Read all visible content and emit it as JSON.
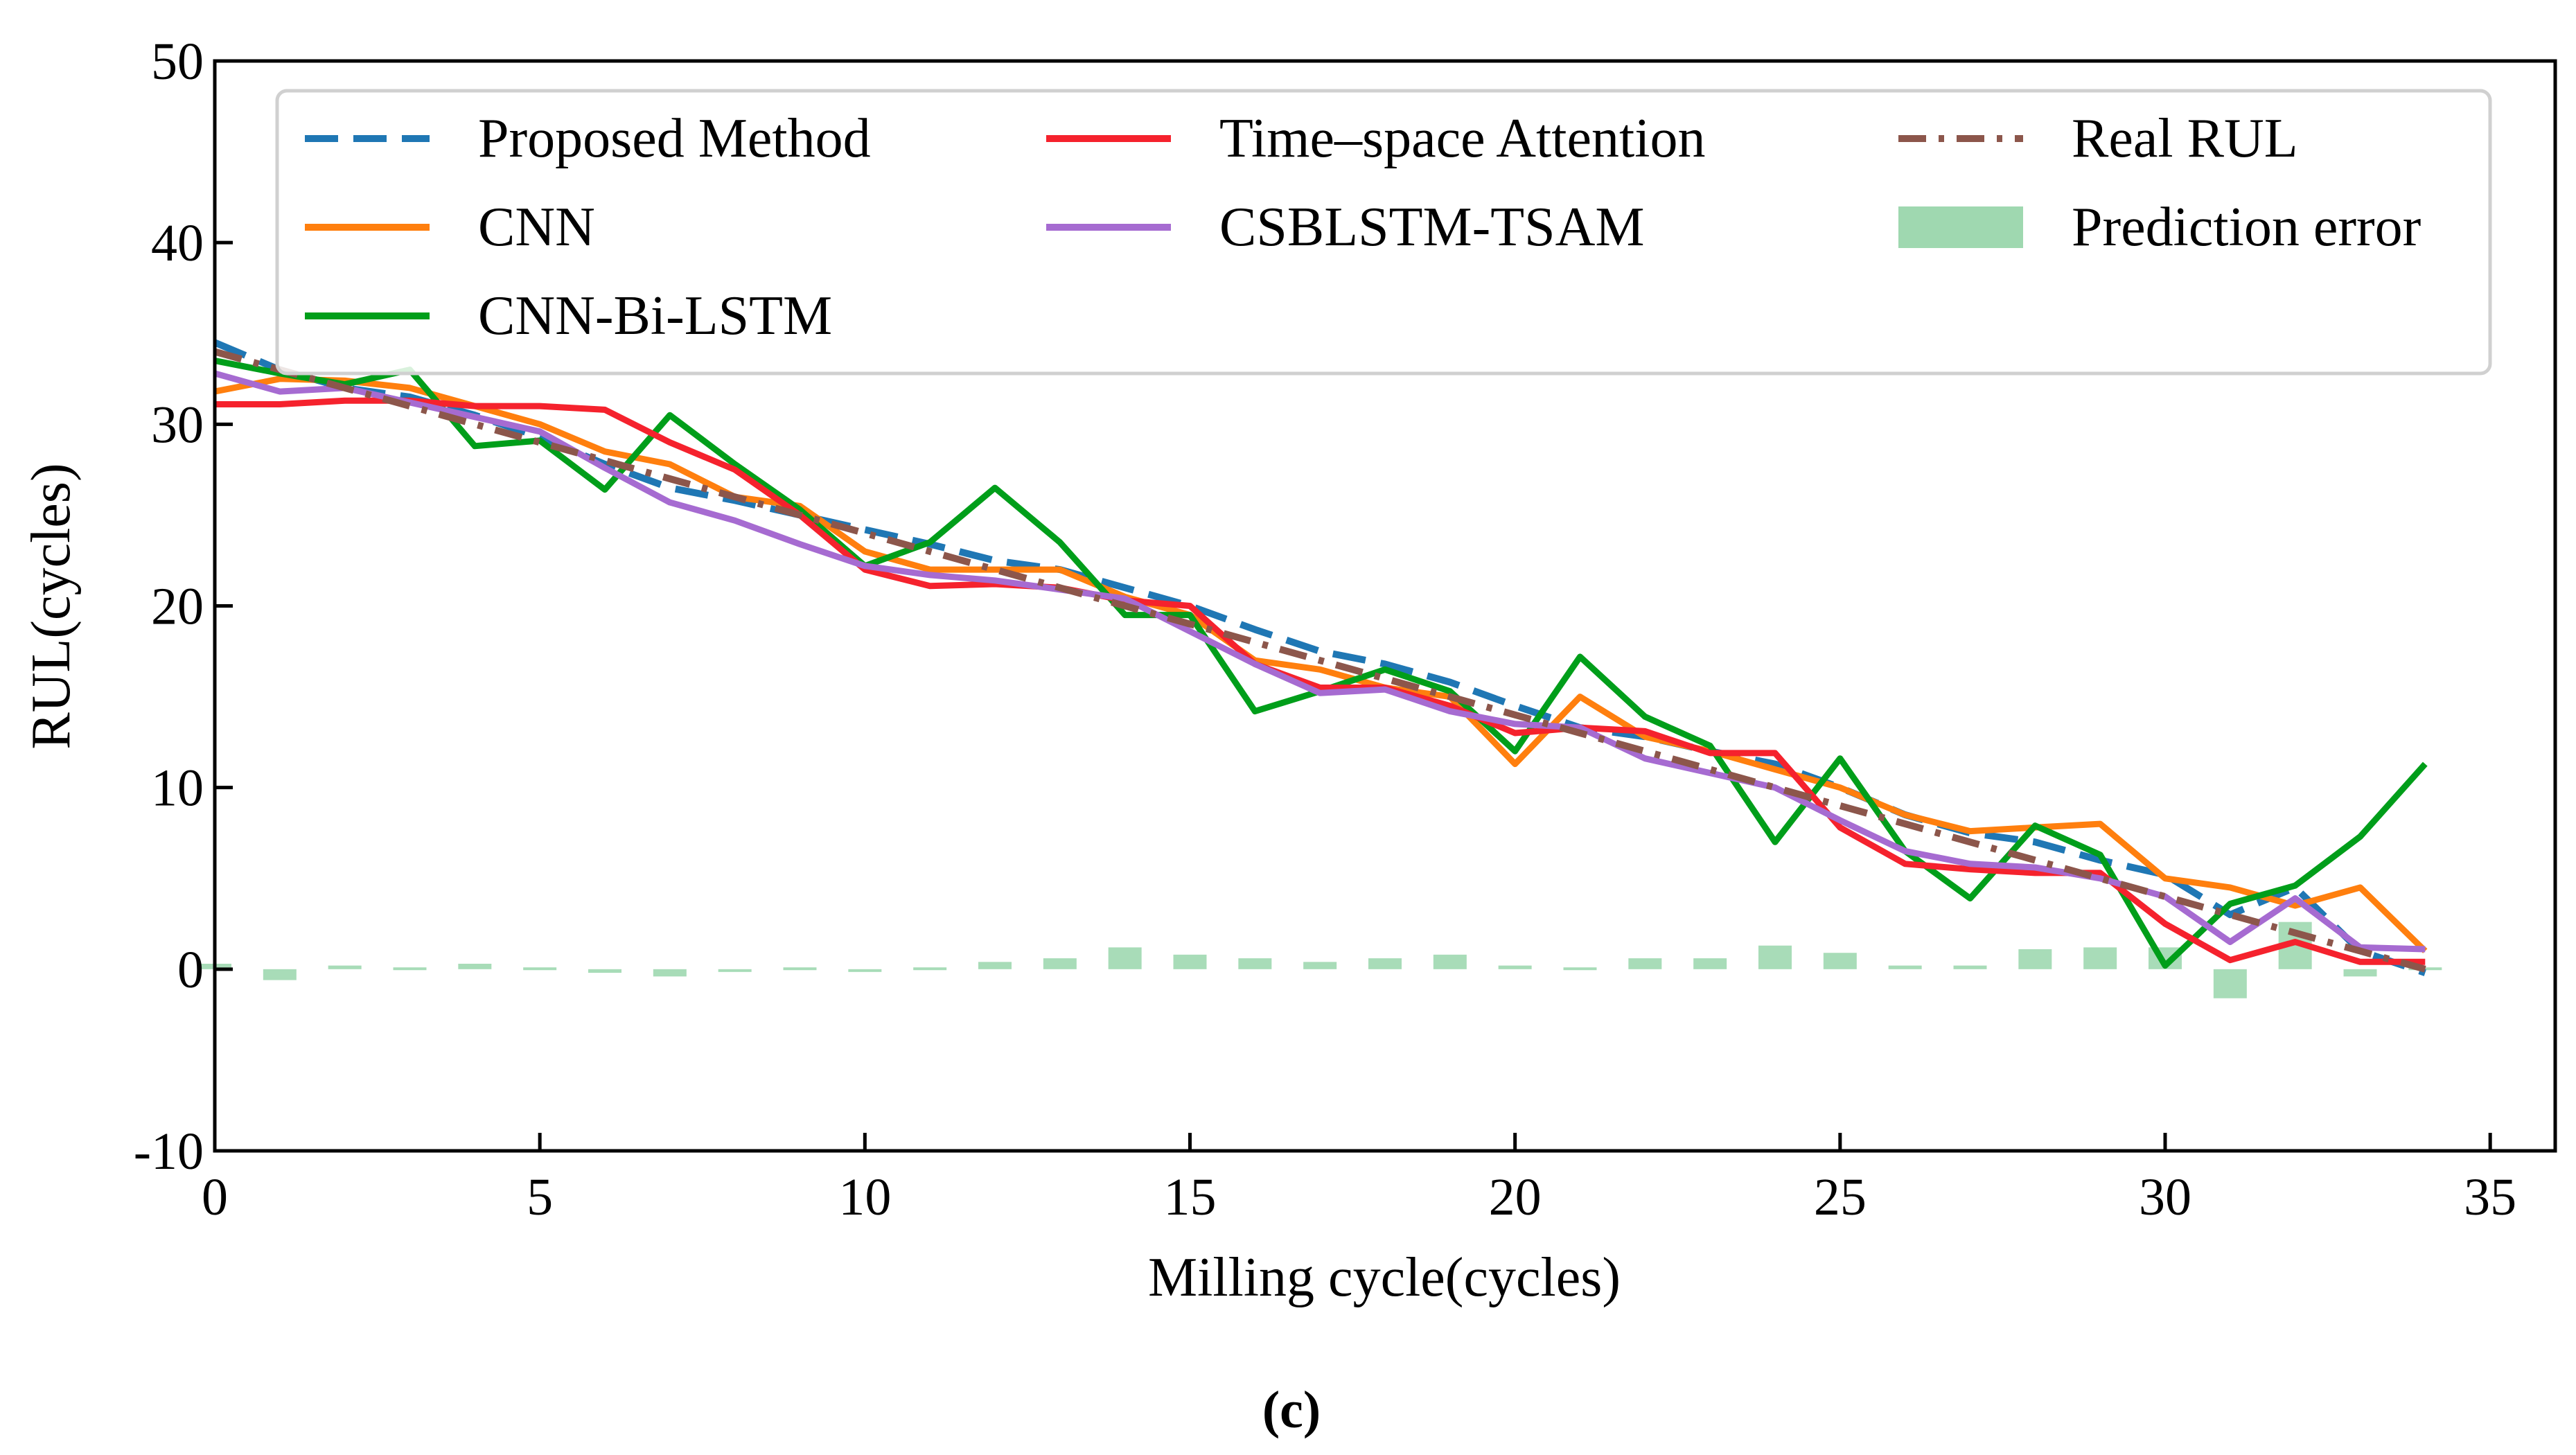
{
  "chart_data": {
    "type": "line",
    "title": "",
    "xlabel": "Milling cycle(cycles)",
    "ylabel": "RUL(cycles)",
    "caption": "(c)",
    "xlim": [
      0,
      36
    ],
    "ylim": [
      -10,
      50
    ],
    "xticks": [
      0,
      5,
      10,
      15,
      20,
      25,
      30,
      35
    ],
    "yticks": [
      -10,
      0,
      10,
      20,
      30,
      40,
      50
    ],
    "grid": false,
    "legend_position": "top",
    "x": [
      0,
      1,
      2,
      3,
      4,
      5,
      6,
      7,
      8,
      9,
      10,
      11,
      12,
      13,
      14,
      15,
      16,
      17,
      18,
      19,
      20,
      21,
      22,
      23,
      24,
      25,
      26,
      27,
      28,
      29,
      30,
      31,
      32,
      33,
      34
    ],
    "series": [
      {
        "name": "Proposed Method",
        "color": "#1f77b4",
        "style": "dashed",
        "values": [
          34.5,
          33,
          32,
          31.5,
          30.5,
          29.3,
          27.8,
          26.5,
          25.8,
          25,
          24.2,
          23.4,
          22.5,
          22,
          21,
          20,
          18.7,
          17.5,
          16.8,
          15.8,
          14.5,
          13.3,
          12.8,
          12,
          11.3,
          10,
          8.5,
          7.5,
          7,
          6,
          5.2,
          3,
          4.5,
          1,
          -0.2
        ]
      },
      {
        "name": "CNN",
        "color": "#ff7f0e",
        "style": "solid",
        "values": [
          31.8,
          32.5,
          32.4,
          32,
          31,
          30,
          28.5,
          27.8,
          26,
          25.5,
          23,
          22,
          22,
          22,
          20.5,
          19.5,
          17,
          16.5,
          15.5,
          15,
          11.3,
          15,
          12.8,
          12,
          11,
          10,
          8.5,
          7.6,
          7.8,
          8,
          5,
          4.5,
          3.5,
          4.5,
          1
        ]
      },
      {
        "name": "CNN-Bi-LSTM",
        "color": "#009e1a",
        "style": "solid",
        "values": [
          33.5,
          32.8,
          32.2,
          33,
          28.8,
          29.1,
          26.4,
          30.5,
          27.8,
          25.3,
          22.2,
          23.5,
          26.5,
          23.5,
          19.5,
          19.5,
          14.2,
          15.3,
          16.5,
          15.3,
          12,
          17.2,
          13.9,
          12.3,
          7,
          11.6,
          6.5,
          3.9,
          7.9,
          6.3,
          0.2,
          3.6,
          4.6,
          7.3,
          11.3
        ]
      },
      {
        "name": "Time–space Attention",
        "color": "#f5222d",
        "style": "solid",
        "values": [
          31.1,
          31.1,
          31.3,
          31.3,
          31,
          31,
          30.8,
          29,
          27.5,
          25,
          22,
          21.1,
          21.2,
          21,
          20.3,
          20,
          16.8,
          15.5,
          15.5,
          14.5,
          13,
          13.3,
          13.1,
          11.9,
          11.9,
          7.8,
          5.8,
          5.5,
          5.3,
          5.3,
          2.5,
          0.5,
          1.5,
          0.4,
          0.4
        ]
      },
      {
        "name": "CSBLSTM-TSAM",
        "color": "#a66bd1",
        "style": "solid",
        "values": [
          32.8,
          31.8,
          32,
          31.2,
          30.4,
          29.6,
          27.6,
          25.7,
          24.7,
          23.4,
          22.2,
          21.7,
          21.4,
          20.9,
          20.4,
          18.6,
          16.8,
          15.2,
          15.4,
          14.2,
          13.5,
          13.3,
          11.6,
          10.8,
          10,
          8.2,
          6.5,
          5.8,
          5.6,
          5,
          4,
          1.5,
          3.9,
          1.2,
          1.1
        ]
      },
      {
        "name": "Real RUL",
        "color": "#8c564b",
        "style": "dashdot",
        "values": [
          34,
          33,
          32,
          31,
          30,
          29,
          28,
          27,
          26,
          25,
          24,
          23,
          22,
          21,
          20,
          19,
          18,
          17,
          16,
          15,
          14,
          13,
          12,
          11,
          10,
          9,
          8,
          7,
          6,
          5,
          4,
          3,
          2,
          1,
          0
        ]
      }
    ],
    "bars": {
      "name": "Prediction error",
      "color": "#9fd8b0",
      "values": [
        0.3,
        -0.6,
        0.2,
        0.1,
        0.3,
        0.1,
        -0.2,
        -0.4,
        0,
        0.1,
        0,
        0.1,
        0.4,
        0.6,
        1.2,
        0.8,
        0.6,
        0.4,
        0.6,
        0.8,
        0.2,
        0.1,
        0.6,
        0.6,
        1.3,
        0.9,
        0.2,
        0.2,
        1.1,
        1.2,
        1.2,
        -1.6,
        2.6,
        -0.4,
        0.1
      ]
    }
  }
}
